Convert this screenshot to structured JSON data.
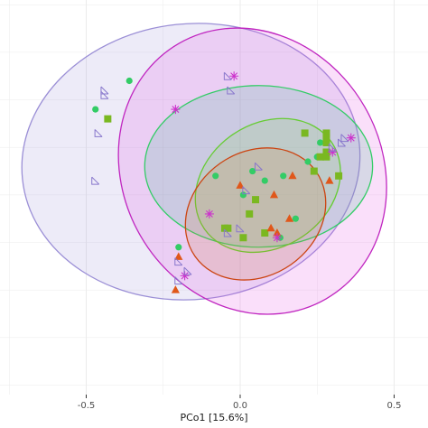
{
  "chart_data": {
    "type": "scatter",
    "title": "",
    "xlabel": "PCo1 [15.6%]",
    "ylabel": "",
    "xlim": [
      -0.78,
      0.61
    ],
    "ylim": [
      -0.42,
      0.41
    ],
    "x_ticks": [
      -0.5,
      0.0,
      0.5
    ],
    "x_tick_labels": [
      "-0.5",
      "0.0",
      "0.5"
    ],
    "grid": true,
    "legend": "none",
    "ellipses": [
      {
        "color": "#9b8fd6",
        "fill": "#9b8fd6",
        "cx": -0.16,
        "cy": 0.07,
        "rx": 0.55,
        "ry": 0.29,
        "angle": -6
      },
      {
        "color": "#c026c0",
        "fill": "#e24be2",
        "cx": 0.04,
        "cy": 0.05,
        "rx": 0.42,
        "ry": 0.31,
        "angle": -30
      },
      {
        "color": "#33cc66",
        "fill": "#3fbf8f",
        "cx": 0.06,
        "cy": 0.06,
        "rx": 0.37,
        "ry": 0.17,
        "angle": 0
      },
      {
        "color": "#66cc33",
        "fill": "#8cd15a",
        "cx": 0.09,
        "cy": 0.02,
        "rx": 0.25,
        "ry": 0.13,
        "angle": -34
      },
      {
        "color": "#cc4411",
        "fill": "#d47a3a",
        "cx": 0.05,
        "cy": -0.04,
        "rx": 0.24,
        "ry": 0.13,
        "angle": -35
      }
    ],
    "series": [
      {
        "marker": "circle",
        "color": "#33cc66",
        "points": [
          [
            -0.36,
            0.24
          ],
          [
            -0.47,
            0.18
          ],
          [
            -0.08,
            0.04
          ],
          [
            0.04,
            0.05
          ],
          [
            0.01,
            0.0
          ],
          [
            0.08,
            0.03
          ],
          [
            0.03,
            -0.04
          ],
          [
            0.14,
            0.04
          ],
          [
            0.22,
            0.07
          ],
          [
            0.25,
            0.08
          ],
          [
            0.13,
            -0.09
          ],
          [
            -0.2,
            -0.11
          ],
          [
            0.18,
            -0.05
          ],
          [
            0.26,
            0.11
          ]
        ]
      },
      {
        "marker": "square",
        "color": "#7ab821",
        "points": [
          [
            -0.43,
            0.16
          ],
          [
            0.21,
            0.13
          ],
          [
            0.26,
            0.08
          ],
          [
            0.28,
            0.08
          ],
          [
            0.28,
            0.11
          ],
          [
            0.28,
            0.13
          ],
          [
            0.28,
            0.12
          ],
          [
            0.28,
            0.09
          ],
          [
            0.05,
            -0.01
          ],
          [
            0.03,
            -0.04
          ],
          [
            -0.05,
            -0.07
          ],
          [
            0.01,
            -0.09
          ],
          [
            0.08,
            -0.08
          ],
          [
            0.32,
            0.04
          ],
          [
            -0.04,
            -0.07
          ],
          [
            0.24,
            0.05
          ]
        ]
      },
      {
        "marker": "triangle",
        "color": "#e0571a",
        "points": [
          [
            -0.2,
            -0.13
          ],
          [
            0.0,
            0.02
          ],
          [
            0.11,
            0.0
          ],
          [
            0.17,
            0.04
          ],
          [
            0.16,
            -0.05
          ],
          [
            0.12,
            -0.08
          ],
          [
            -0.21,
            -0.2
          ],
          [
            0.1,
            -0.07
          ],
          [
            0.29,
            0.03
          ]
        ]
      },
      {
        "marker": "asterisk",
        "color": "#cc33cc",
        "points": [
          [
            -0.02,
            0.25
          ],
          [
            -0.21,
            0.18
          ],
          [
            0.3,
            0.09
          ],
          [
            0.36,
            0.12
          ],
          [
            -0.1,
            -0.04
          ],
          [
            0.12,
            -0.09
          ],
          [
            -0.18,
            -0.17
          ]
        ]
      },
      {
        "marker": "open-square-cross",
        "color": "#8877cc",
        "points": [
          [
            -0.44,
            0.22
          ],
          [
            -0.44,
            0.21
          ],
          [
            -0.46,
            0.13
          ],
          [
            0.02,
            0.01
          ],
          [
            0.06,
            0.06
          ],
          [
            0.33,
            0.11
          ],
          [
            0.34,
            0.12
          ],
          [
            -0.2,
            -0.14
          ],
          [
            -0.2,
            -0.18
          ],
          [
            -0.17,
            -0.16
          ],
          [
            0.0,
            -0.07
          ],
          [
            -0.04,
            -0.08
          ],
          [
            0.3,
            0.1
          ],
          [
            -0.04,
            0.25
          ],
          [
            -0.03,
            0.22
          ],
          [
            -0.47,
            0.03
          ]
        ]
      }
    ]
  }
}
